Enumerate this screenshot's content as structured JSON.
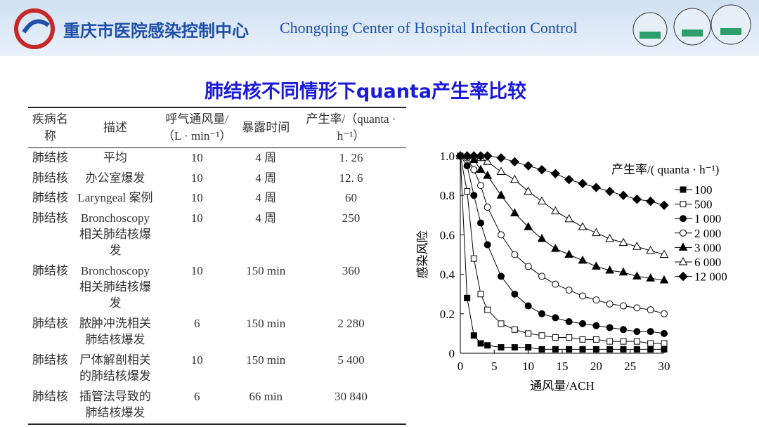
{
  "header": {
    "title": "重庆市医院感染控制中心",
    "subtitle": "Chongqing  Center of  Hospital Infection  Control"
  },
  "title": "肺结核不同情形下quanta产生率比较",
  "table": {
    "columns": [
      "疾病名称",
      "描述",
      "呼气通风量/（L · min⁻¹）",
      "暴露时间",
      "产生率/（quanta · h⁻¹）"
    ],
    "rows": [
      [
        "肺结核",
        "平均",
        "10",
        "4 周",
        "1. 26"
      ],
      [
        "肺结核",
        "办公室爆发",
        "10",
        "4 周",
        "12. 6"
      ],
      [
        "肺结核",
        "Laryngeal 案例",
        "10",
        "4 周",
        "60"
      ],
      [
        "肺结核",
        "Bronchoscopy 相关肺结核爆发",
        "10",
        "4 周",
        "250"
      ],
      [
        "肺结核",
        "Bronchoscopy 相关肺结核爆发",
        "10",
        "150 min",
        "360"
      ],
      [
        "肺结核",
        "脓肿冲洗相关肺结核爆发",
        "6",
        "150 min",
        "2 280"
      ],
      [
        "肺结核",
        "尸体解剖相关的肺结核爆发",
        "10",
        "150 min",
        "5 400"
      ],
      [
        "肺结核",
        "插管法导致的肺结核爆发",
        "6",
        "66 min",
        "30 840"
      ]
    ]
  },
  "chart_data": {
    "type": "line",
    "x_label": "通风量/ACH",
    "y_label": "感染风险",
    "legend_title": "产生率/( quanta · h⁻¹)",
    "x": [
      0,
      1,
      2,
      3,
      4,
      6,
      8,
      10,
      12,
      14,
      16,
      18,
      20,
      22,
      24,
      26,
      28,
      30
    ],
    "xlim": [
      0,
      30
    ],
    "xticks": [
      0,
      5,
      10,
      15,
      20,
      25,
      30
    ],
    "ylim": [
      0,
      1
    ],
    "yticks": [
      0,
      0.2,
      0.4,
      0.6,
      0.8,
      {
        "value": 1,
        "label": "1.0"
      }
    ],
    "series": [
      {
        "name": "100",
        "color": "#000000",
        "marker": "square",
        "filled": true,
        "values": [
          1,
          0.28,
          0.09,
          0.05,
          0.04,
          0.03,
          0.03,
          0.03,
          0.02,
          0.02,
          0.02,
          0.02,
          0.02,
          0.02,
          0.02,
          0.02,
          0.02,
          0.02
        ]
      },
      {
        "name": "500",
        "color": "#000000",
        "marker": "square",
        "filled": false,
        "values": [
          1,
          0.82,
          0.48,
          0.3,
          0.22,
          0.15,
          0.12,
          0.1,
          0.09,
          0.08,
          0.08,
          0.07,
          0.07,
          0.06,
          0.06,
          0.06,
          0.05,
          0.05
        ]
      },
      {
        "name": "1 000",
        "color": "#000000",
        "marker": "circle",
        "filled": true,
        "values": [
          1,
          0.95,
          0.8,
          0.66,
          0.55,
          0.39,
          0.3,
          0.24,
          0.2,
          0.18,
          0.16,
          0.15,
          0.14,
          0.13,
          0.12,
          0.11,
          0.11,
          0.1
        ]
      },
      {
        "name": "2 000",
        "color": "#000000",
        "marker": "circle",
        "filled": false,
        "values": [
          1,
          0.99,
          0.93,
          0.85,
          0.74,
          0.6,
          0.5,
          0.44,
          0.39,
          0.35,
          0.32,
          0.29,
          0.27,
          0.25,
          0.24,
          0.23,
          0.22,
          0.2
        ]
      },
      {
        "name": "3 000",
        "color": "#000000",
        "marker": "triangle",
        "filled": true,
        "values": [
          1,
          1,
          0.98,
          0.93,
          0.9,
          0.8,
          0.71,
          0.64,
          0.58,
          0.53,
          0.5,
          0.47,
          0.44,
          0.42,
          0.41,
          0.39,
          0.38,
          0.37
        ]
      },
      {
        "name": "6 000",
        "color": "#000000",
        "marker": "triangle",
        "filled": false,
        "values": [
          1,
          1,
          1,
          0.99,
          0.97,
          0.92,
          0.88,
          0.82,
          0.77,
          0.72,
          0.68,
          0.64,
          0.61,
          0.58,
          0.56,
          0.54,
          0.52,
          0.5
        ]
      },
      {
        "name": "12 000",
        "color": "#000000",
        "marker": "diamond",
        "filled": true,
        "values": [
          1,
          1,
          1,
          1,
          1,
          0.99,
          0.97,
          0.95,
          0.93,
          0.91,
          0.88,
          0.86,
          0.84,
          0.82,
          0.8,
          0.78,
          0.77,
          0.75
        ]
      }
    ]
  }
}
